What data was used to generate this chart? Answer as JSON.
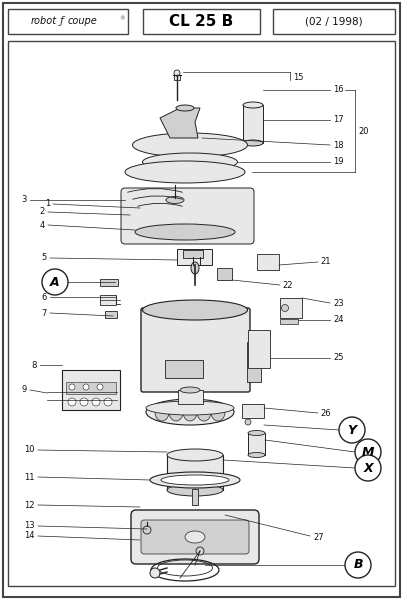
{
  "title_left": "robot ℓ coupe",
  "title_center": "CL 25 B",
  "title_right": "(02 / 1998)",
  "bg_color": "#f5f5f5",
  "border_color": "#444444",
  "line_color": "#222222",
  "part_fill": "#e8e8e8",
  "part_fill_dark": "#d0d0d0",
  "label_color": "#111111"
}
